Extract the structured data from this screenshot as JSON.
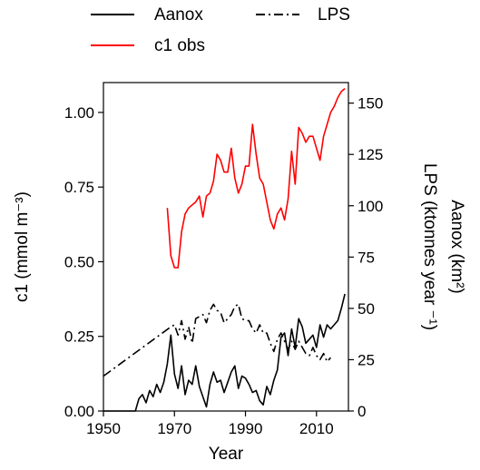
{
  "chart_data": {
    "type": "line",
    "xlabel": "Year",
    "ylabel_left": "c1 (mmol m⁻³)",
    "ylabel_right_1": "LPS (ktonnes year ⁻¹)",
    "ylabel_right_2": "Aanox (km²)",
    "xlim": [
      1950,
      2019
    ],
    "ylim_left": [
      0,
      1.1
    ],
    "ylim_right": [
      0,
      160
    ],
    "x_ticks": [
      "1950",
      "1970",
      "1990",
      "2010"
    ],
    "y_left_ticks": [
      "0.00",
      "0.25",
      "0.50",
      "0.75",
      "1.00"
    ],
    "y_right_ticks": [
      "0",
      "25",
      "50",
      "75",
      "100",
      "125",
      "150"
    ],
    "legend": {
      "position": "top",
      "entries": [
        {
          "label": "Aanox",
          "series": "aanox"
        },
        {
          "label": "LPS",
          "series": "lps"
        },
        {
          "label": "c1 obs",
          "series": "c1"
        }
      ]
    },
    "series": [
      {
        "id": "c1",
        "name": "c1 obs",
        "axis": "left",
        "color": "#ff0000",
        "dash": "solid",
        "x": [
          1968,
          1969,
          1970,
          1971,
          1972,
          1973,
          1974,
          1975,
          1976,
          1977,
          1978,
          1979,
          1980,
          1981,
          1982,
          1983,
          1984,
          1985,
          1986,
          1987,
          1988,
          1989,
          1990,
          1991,
          1992,
          1993,
          1994,
          1995,
          1996,
          1997,
          1998,
          1999,
          2000,
          2001,
          2002,
          2003,
          2004,
          2005,
          2006,
          2007,
          2008,
          2009,
          2010,
          2011,
          2012,
          2013,
          2014,
          2015,
          2016,
          2017,
          2018
        ],
        "values": [
          0.68,
          0.52,
          0.48,
          0.48,
          0.6,
          0.66,
          0.68,
          0.69,
          0.7,
          0.72,
          0.65,
          0.72,
          0.73,
          0.77,
          0.86,
          0.84,
          0.8,
          0.8,
          0.88,
          0.78,
          0.73,
          0.76,
          0.82,
          0.82,
          0.96,
          0.86,
          0.78,
          0.76,
          0.7,
          0.64,
          0.61,
          0.66,
          0.68,
          0.64,
          0.71,
          0.87,
          0.76,
          0.95,
          0.93,
          0.9,
          0.92,
          0.92,
          0.88,
          0.84,
          0.92,
          0.96,
          1.0,
          1.02,
          1.05,
          1.07,
          1.08
        ]
      },
      {
        "id": "lps",
        "name": "LPS",
        "axis": "right",
        "color": "#000000",
        "dash": "dashdot",
        "x": [
          1950,
          1969,
          1970,
          1971,
          1972,
          1973,
          1974,
          1975,
          1976,
          1977,
          1978,
          1979,
          1980,
          1981,
          1982,
          1983,
          1984,
          1985,
          1986,
          1987,
          1988,
          1989,
          1990,
          1991,
          1992,
          1993,
          1994,
          1995,
          1996,
          1997,
          1998,
          1999,
          2000,
          2001,
          2002,
          2003,
          2004,
          2005,
          2006,
          2007,
          2008,
          2009,
          2010,
          2011,
          2012,
          2013,
          2014
        ],
        "values": [
          17,
          41,
          42,
          37,
          44,
          35,
          41,
          33,
          45,
          46,
          47,
          43,
          49,
          52,
          49,
          48,
          43,
          45,
          47,
          51,
          52,
          45,
          44,
          44,
          40,
          38,
          42,
          38,
          38,
          33,
          29,
          35,
          38,
          34,
          30,
          34,
          30,
          34,
          31,
          28,
          27,
          31,
          27,
          25,
          28,
          24,
          26
        ]
      },
      {
        "id": "aanox",
        "name": "Aanox",
        "axis": "right",
        "color": "#000000",
        "dash": "solid",
        "x": [
          1950,
          1958,
          1959,
          1960,
          1961,
          1962,
          1963,
          1964,
          1965,
          1966,
          1967,
          1968,
          1969,
          1970,
          1971,
          1972,
          1973,
          1974,
          1975,
          1976,
          1977,
          1978,
          1979,
          1980,
          1981,
          1982,
          1983,
          1984,
          1985,
          1986,
          1987,
          1988,
          1989,
          1990,
          1991,
          1992,
          1993,
          1994,
          1995,
          1996,
          1997,
          1998,
          1999,
          2000,
          2001,
          2002,
          2003,
          2004,
          2005,
          2006,
          2007,
          2008,
          2009,
          2010,
          2011,
          2012,
          2013,
          2014,
          2015,
          2016,
          2017,
          2018
        ],
        "values": [
          0,
          0,
          0,
          6,
          8,
          4,
          10,
          7,
          13,
          9,
          14,
          23,
          37,
          18,
          11,
          22,
          8,
          15,
          13,
          22,
          12,
          7,
          2,
          13,
          19,
          14,
          15,
          9,
          14,
          19,
          22,
          11,
          17,
          16,
          13,
          9,
          10,
          5,
          3,
          12,
          8,
          15,
          20,
          36,
          38,
          27,
          40,
          31,
          45,
          41,
          33,
          35,
          37,
          31,
          42,
          36,
          42,
          40,
          42,
          44,
          50,
          57
        ]
      }
    ]
  }
}
